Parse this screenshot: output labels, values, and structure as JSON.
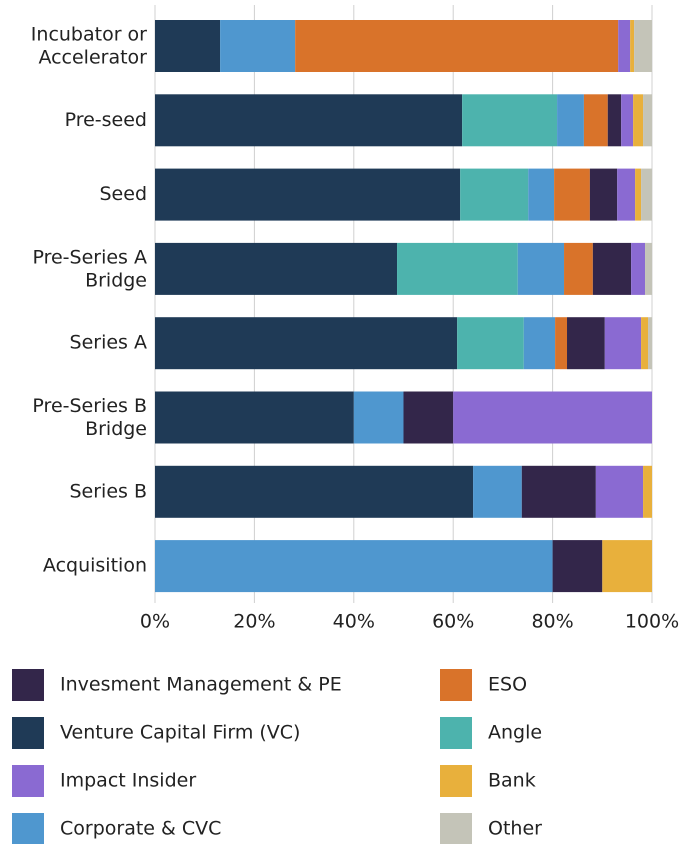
{
  "chart_data": {
    "type": "stacked-barh",
    "categories": [
      "Incubator or\nAccelerator",
      "Pre-seed",
      "Seed",
      "Pre-Series A\nBridge",
      "Series A",
      "Pre-Series B\nBridge",
      "Series B",
      "Acquisition"
    ],
    "series": [
      {
        "name": "Venture Capital Firm (VC)",
        "color": "#1f3a56",
        "values": [
          13.1,
          61.8,
          61.4,
          48.7,
          60.8,
          40,
          64,
          0
        ]
      },
      {
        "name": "Angle",
        "color": "#4db3ad",
        "values": [
          0,
          19.1,
          13.7,
          24.3,
          13.4,
          0,
          0,
          0
        ]
      },
      {
        "name": "Corporate & CVC",
        "color": "#4f97cf",
        "values": [
          15.1,
          5.4,
          5.2,
          9.3,
          6.3,
          10,
          9.8,
          80
        ]
      },
      {
        "name": "ESO",
        "color": "#d9732a",
        "values": [
          65,
          4.8,
          7.2,
          5.8,
          2.4,
          0,
          0,
          0
        ]
      },
      {
        "name": "Invesment Management & PE",
        "color": "#33264a",
        "values": [
          0,
          2.7,
          5.5,
          7.7,
          7.6,
          10,
          14.9,
          10
        ]
      },
      {
        "name": "Impact Insider",
        "color": "#8a6ad2",
        "values": [
          2.4,
          2.4,
          3.6,
          2.8,
          7.3,
          40,
          9.5,
          0
        ]
      },
      {
        "name": "Bank",
        "color": "#e8b03c",
        "values": [
          0.8,
          2.0,
          1.2,
          0,
          1.4,
          0,
          1.8,
          10
        ]
      },
      {
        "name": "Other",
        "color": "#c4c4b8",
        "values": [
          3.6,
          1.8,
          2.2,
          1.4,
          0.8,
          0,
          0,
          0
        ]
      }
    ],
    "xlim": [
      0,
      100
    ],
    "xticks": [
      {
        "value": 0,
        "label": "0%"
      },
      {
        "value": 20,
        "label": "20%"
      },
      {
        "value": 40,
        "label": "40%"
      },
      {
        "value": 60,
        "label": "60%"
      },
      {
        "value": 80,
        "label": "80%"
      },
      {
        "value": 100,
        "label": "100%"
      }
    ],
    "grid": true
  }
}
